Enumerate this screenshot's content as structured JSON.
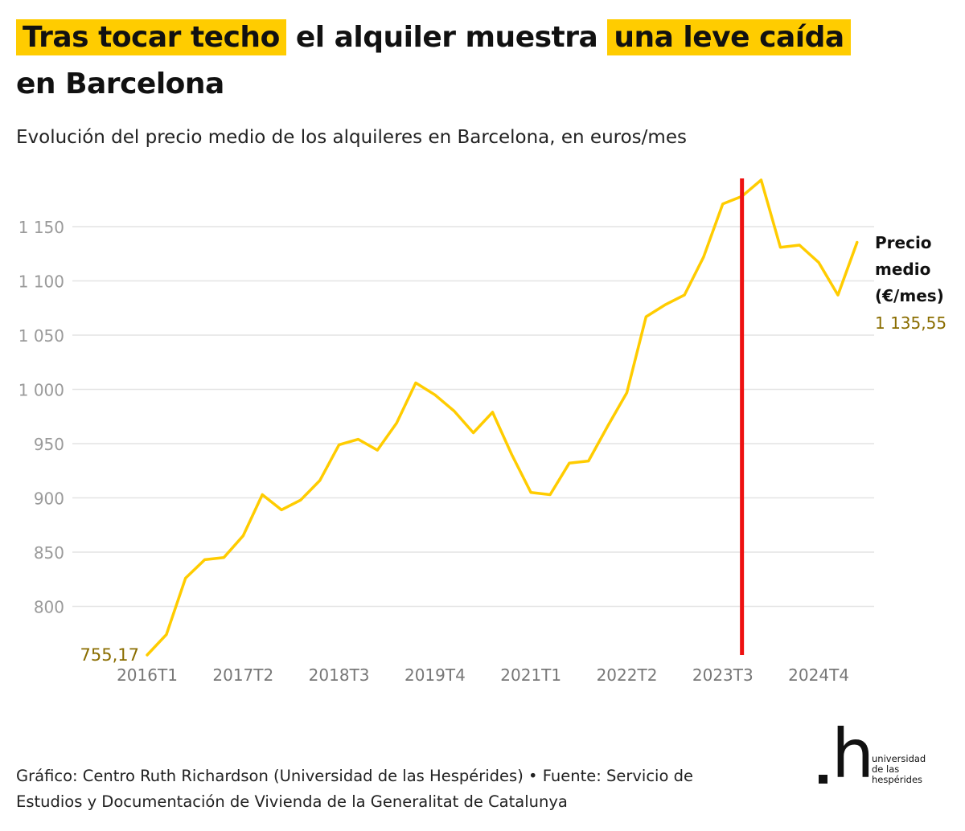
{
  "title": {
    "highlight_1": "Tras tocar techo",
    "middle": "el alquiler muestra",
    "highlight_2": "una leve caída",
    "end": "en Barcelona"
  },
  "subtitle": "Evolución del precio medio de los alquileres en Barcelona, en euros/mes",
  "colors": {
    "line": "#ffcc00",
    "marker": "#ee1111",
    "highlight": "#ffcc00",
    "value_label": "#8a6d00",
    "grid": "#e4e4e4",
    "axis_text": "#9a9a9a"
  },
  "chart_data": {
    "type": "line",
    "x": [
      "2016T1",
      "2016T2",
      "2016T3",
      "2016T4",
      "2017T1",
      "2017T2",
      "2017T3",
      "2017T4",
      "2018T1",
      "2018T2",
      "2018T3",
      "2018T4",
      "2019T1",
      "2019T2",
      "2019T3",
      "2019T4",
      "2020T1",
      "2020T2",
      "2020T3",
      "2020T4",
      "2021T1",
      "2021T2",
      "2021T3",
      "2021T4",
      "2022T1",
      "2022T2",
      "2022T3",
      "2022T4",
      "2023T1",
      "2023T2",
      "2023T3",
      "2023T4",
      "2024T1",
      "2024T2",
      "2024T3",
      "2024T4",
      "2025T1",
      "2025T2"
    ],
    "x_tick_labels": [
      "2016T1",
      "2017T2",
      "2018T3",
      "2019T4",
      "2021T1",
      "2022T2",
      "2023T3",
      "2024T4"
    ],
    "series": [
      {
        "name": "Precio medio (€/mes)",
        "values": [
          755.17,
          774,
          826,
          843,
          845,
          865,
          903,
          889,
          898,
          916,
          949,
          954,
          944,
          969,
          1006,
          995,
          980,
          960,
          979,
          940,
          905,
          903,
          932,
          934,
          966,
          997,
          1067,
          1078,
          1087,
          1122,
          1171,
          1178,
          1193,
          1131,
          1133,
          1117,
          1087,
          1135.55
        ]
      }
    ],
    "y_ticks": [
      800,
      850,
      900,
      950,
      1000,
      1050,
      1100,
      1150
    ],
    "y_tick_labels": [
      "800",
      "850",
      "900",
      "950",
      "1 000",
      "1 050",
      "1 100",
      "1 150"
    ],
    "ylim": [
      755.17,
      1193
    ],
    "first_label": "755,17",
    "last_label": "1 135,55",
    "series_label_lines": [
      "Precio",
      "medio",
      "(€/mes)"
    ],
    "marker_at": "2023T4",
    "grid": true
  },
  "footer": {
    "line1": "Gráfico: Centro Ruth Richardson (Universidad de las Hespérides) • Fuente: Servicio de",
    "line2": "Estudios y Documentación de Vivienda de la Generalitat de Catalunya"
  },
  "logo": {
    "mark": "h",
    "lines": [
      "universidad",
      "de las",
      "hespérides"
    ]
  }
}
